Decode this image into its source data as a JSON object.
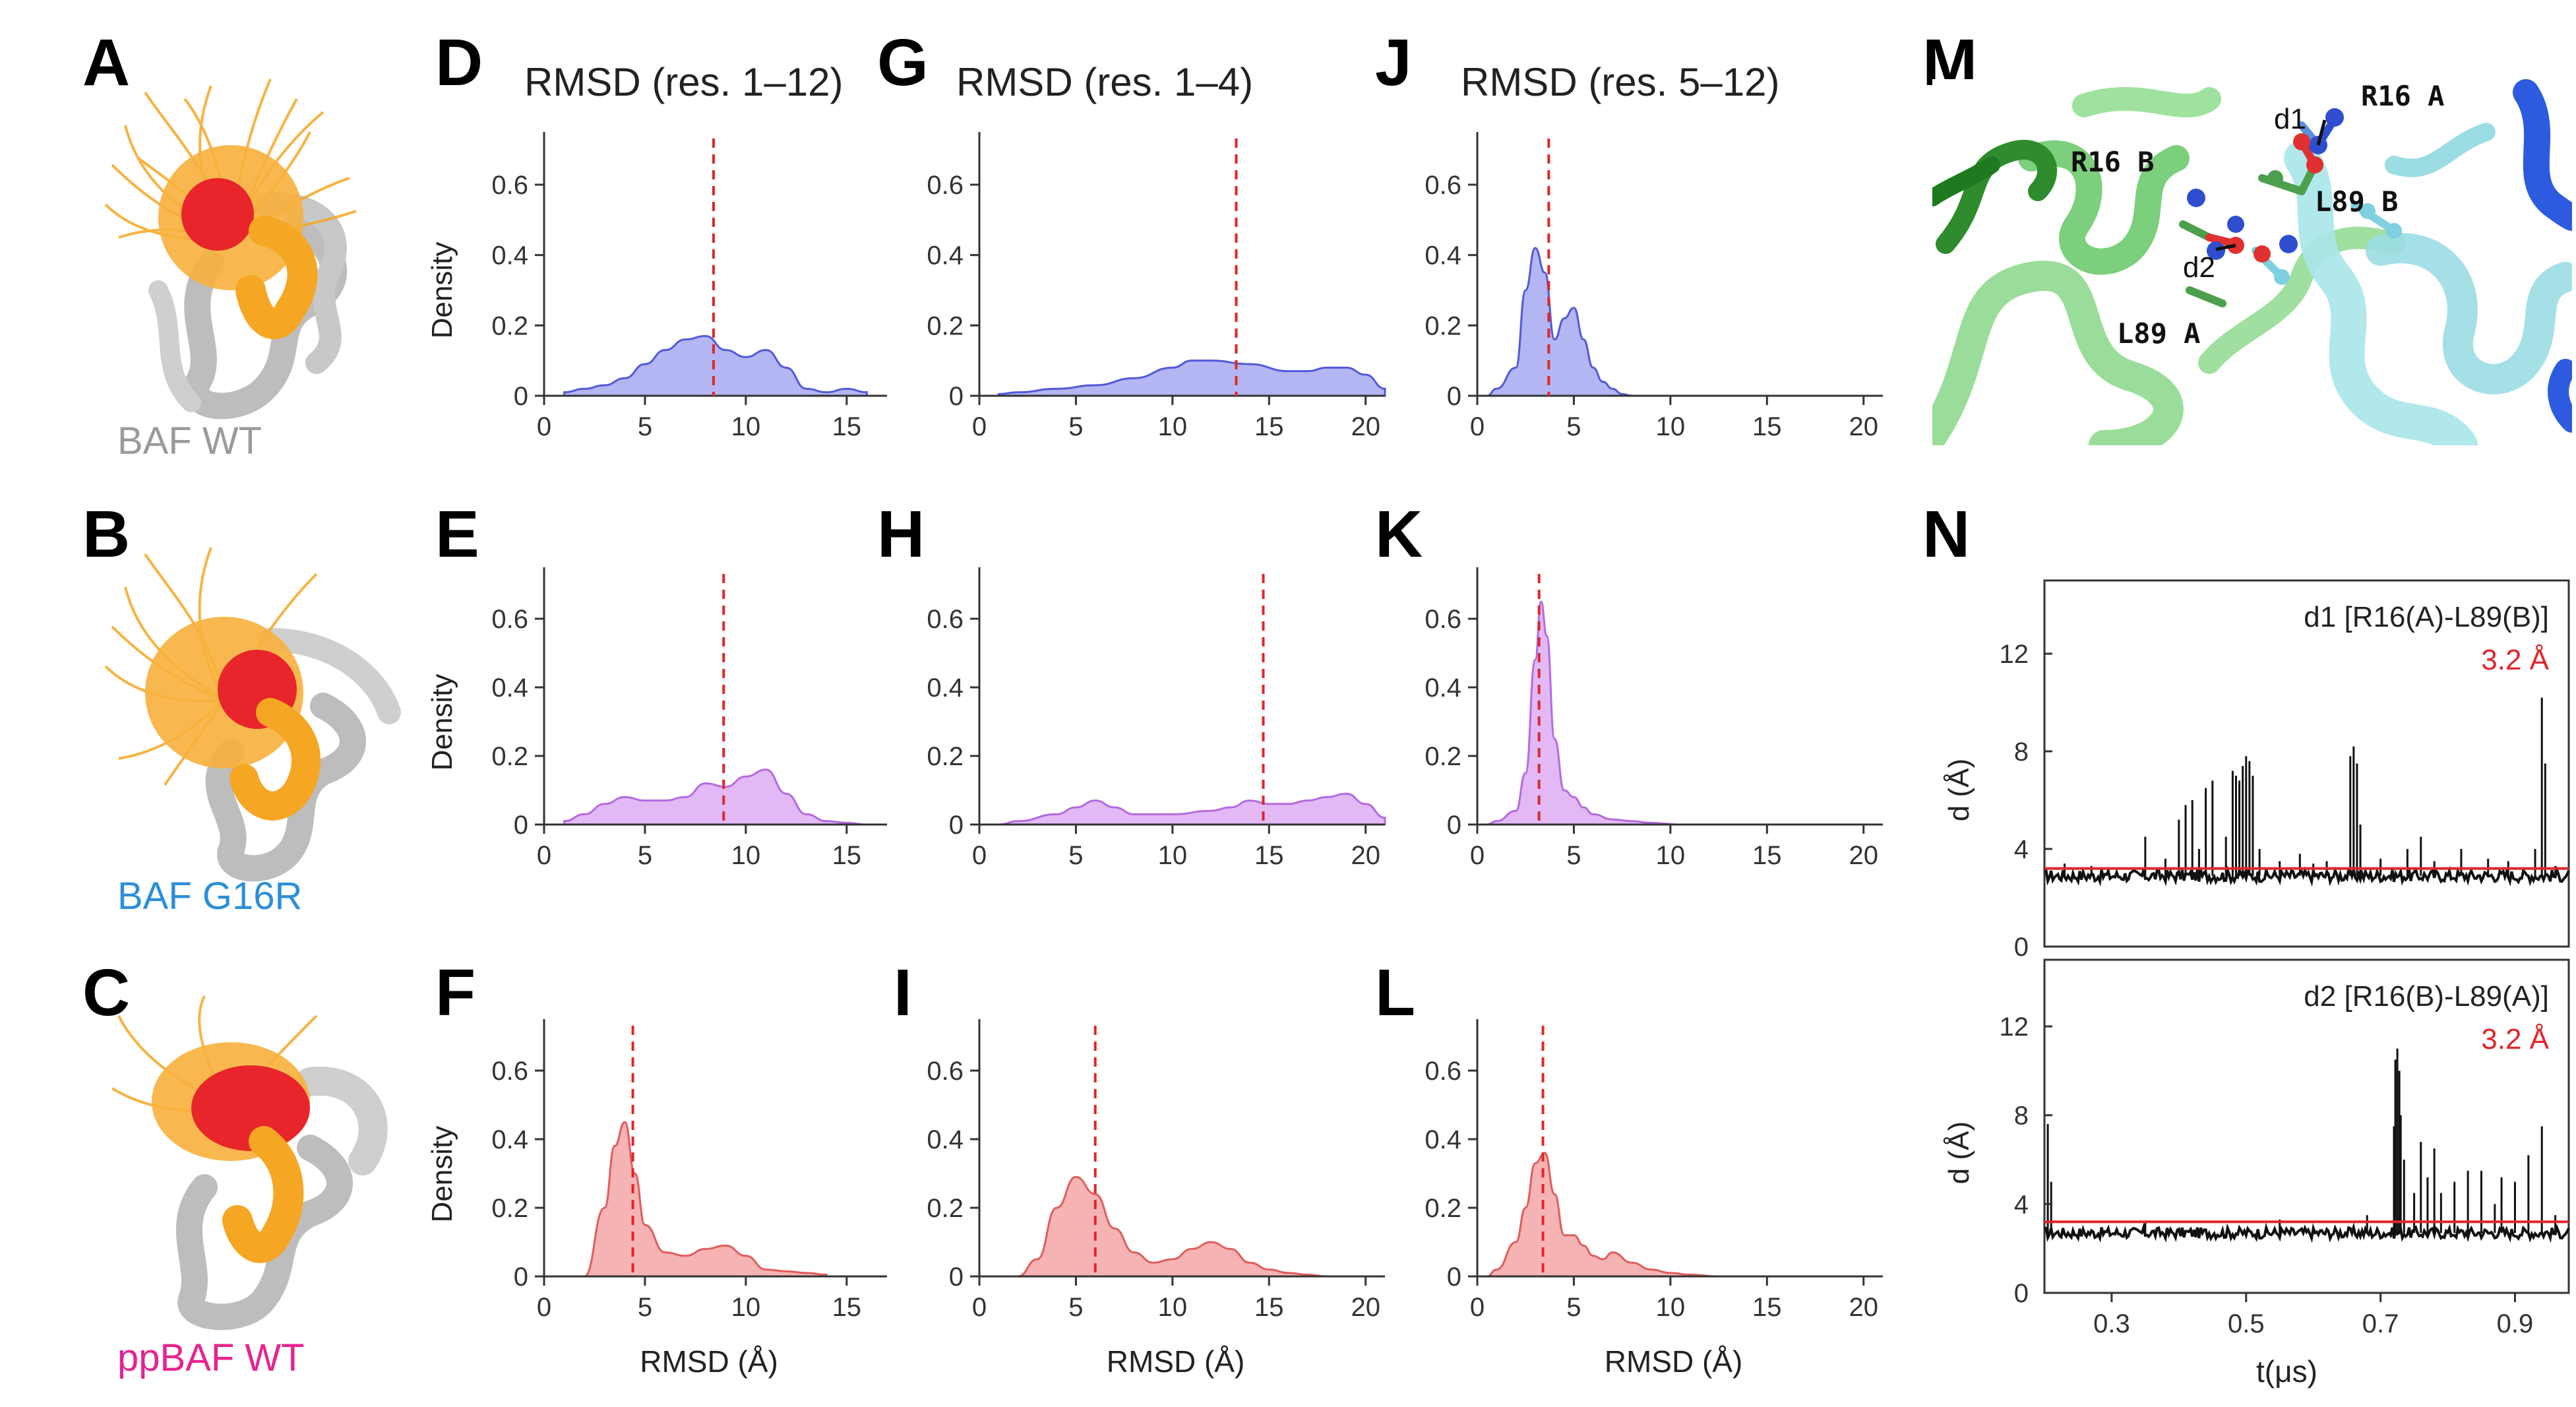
{
  "panel_letters": [
    "A",
    "B",
    "C",
    "D",
    "E",
    "F",
    "G",
    "H",
    "I",
    "J",
    "K",
    "L",
    "M",
    "N"
  ],
  "structures": [
    {
      "label": "BAF WT",
      "color": "#9a9a9a"
    },
    {
      "label": "BAF G16R",
      "color": "#2b8fd9"
    },
    {
      "label": "ppBAF WT",
      "color": "#e6238f"
    }
  ],
  "column_titles": [
    "RMSD (res. 1–12)",
    "RMSD (res. 1–4)",
    "RMSD (res. 5–12)"
  ],
  "shared": {
    "density_label": "Density",
    "rmsd_label": "RMSD (Å)"
  },
  "row_colors": [
    {
      "fill": "#b3b6f3",
      "stroke": "#5259d9"
    },
    {
      "fill": "#e2b9f5",
      "stroke": "#b46ae0"
    },
    {
      "fill": "#f6b3b3",
      "stroke": "#e05d5d"
    }
  ],
  "mean_line_color": "#e0262b",
  "chart_data": [
    {
      "panel": "D",
      "type": "area",
      "title": "RMSD (res. 1–12)",
      "xlabel": "",
      "ylabel": "Density",
      "xlim": [
        0,
        17
      ],
      "ylim": [
        0,
        0.75
      ],
      "xticks": [
        0,
        5,
        10,
        15
      ],
      "yticks": [
        0,
        0.2,
        0.4,
        0.6
      ],
      "mean": 8.4,
      "x": [
        1,
        2,
        3,
        4,
        5,
        6,
        7,
        8,
        9,
        10,
        11,
        12,
        13,
        14,
        15,
        16
      ],
      "y": [
        0.01,
        0.02,
        0.03,
        0.05,
        0.09,
        0.13,
        0.16,
        0.17,
        0.13,
        0.11,
        0.13,
        0.08,
        0.02,
        0.01,
        0.02,
        0.01
      ]
    },
    {
      "panel": "E",
      "type": "area",
      "title": "",
      "xlabel": "",
      "ylabel": "Density",
      "xlim": [
        0,
        17
      ],
      "ylim": [
        0,
        0.75
      ],
      "xticks": [
        0,
        5,
        10,
        15
      ],
      "yticks": [
        0,
        0.2,
        0.4,
        0.6
      ],
      "mean": 8.9,
      "x": [
        1,
        2,
        3,
        4,
        5,
        6,
        7,
        8,
        9,
        10,
        11,
        12,
        13,
        14,
        15,
        16
      ],
      "y": [
        0.01,
        0.03,
        0.06,
        0.08,
        0.07,
        0.07,
        0.08,
        0.12,
        0.11,
        0.14,
        0.16,
        0.09,
        0.03,
        0.01,
        0.005,
        0.0
      ]
    },
    {
      "panel": "F",
      "type": "area",
      "title": "",
      "xlabel": "RMSD (Å)",
      "ylabel": "Density",
      "xlim": [
        0,
        17
      ],
      "ylim": [
        0,
        0.75
      ],
      "xticks": [
        0,
        5,
        10,
        15
      ],
      "yticks": [
        0,
        0.2,
        0.4,
        0.6
      ],
      "mean": 4.4,
      "x": [
        2,
        3,
        3.5,
        4,
        4.5,
        5,
        6,
        7,
        8,
        9,
        10,
        11,
        12,
        13,
        14
      ],
      "y": [
        0.0,
        0.2,
        0.38,
        0.45,
        0.3,
        0.15,
        0.07,
        0.06,
        0.08,
        0.09,
        0.06,
        0.02,
        0.015,
        0.01,
        0.005
      ]
    },
    {
      "panel": "G",
      "type": "area",
      "title": "RMSD (res. 1–4)",
      "xlabel": "",
      "ylabel": "",
      "xlim": [
        0,
        21
      ],
      "ylim": [
        0,
        0.75
      ],
      "xticks": [
        0,
        5,
        10,
        15,
        20
      ],
      "yticks": [
        0,
        0.2,
        0.4,
        0.6
      ],
      "mean": 13.3,
      "x": [
        1,
        2,
        4,
        6,
        8,
        10,
        11,
        12,
        14,
        16,
        17,
        18,
        19,
        20,
        21
      ],
      "y": [
        0.005,
        0.01,
        0.02,
        0.03,
        0.05,
        0.08,
        0.1,
        0.1,
        0.09,
        0.07,
        0.07,
        0.08,
        0.08,
        0.06,
        0.02
      ]
    },
    {
      "panel": "H",
      "type": "area",
      "title": "",
      "xlabel": "",
      "ylabel": "",
      "xlim": [
        0,
        21
      ],
      "ylim": [
        0,
        0.75
      ],
      "xticks": [
        0,
        5,
        10,
        15,
        20
      ],
      "yticks": [
        0,
        0.2,
        0.4,
        0.6
      ],
      "mean": 14.7,
      "x": [
        1,
        2,
        4,
        5,
        6,
        7,
        8,
        10,
        12,
        13,
        14,
        15,
        16,
        17,
        18,
        19,
        20,
        21
      ],
      "y": [
        0.0,
        0.01,
        0.03,
        0.05,
        0.07,
        0.05,
        0.03,
        0.03,
        0.04,
        0.05,
        0.07,
        0.06,
        0.06,
        0.07,
        0.08,
        0.09,
        0.06,
        0.02
      ]
    },
    {
      "panel": "I",
      "type": "area",
      "title": "",
      "xlabel": "RMSD (Å)",
      "ylabel": "",
      "xlim": [
        0,
        21
      ],
      "ylim": [
        0,
        0.75
      ],
      "xticks": [
        0,
        5,
        10,
        15,
        20
      ],
      "yticks": [
        0,
        0.2,
        0.4,
        0.6
      ],
      "mean": 6.0,
      "x": [
        2,
        3,
        4,
        5,
        6,
        7,
        8,
        9,
        10,
        11,
        12,
        13,
        14,
        15,
        16,
        17,
        18
      ],
      "y": [
        0.0,
        0.05,
        0.2,
        0.29,
        0.24,
        0.14,
        0.07,
        0.04,
        0.05,
        0.08,
        0.1,
        0.08,
        0.04,
        0.02,
        0.01,
        0.005,
        0.0
      ]
    },
    {
      "panel": "J",
      "type": "area",
      "title": "RMSD (res. 5–12)",
      "xlabel": "",
      "ylabel": "",
      "xlim": [
        0,
        21
      ],
      "ylim": [
        0,
        0.75
      ],
      "xticks": [
        0,
        5,
        10,
        15,
        20
      ],
      "yticks": [
        0,
        0.2,
        0.4,
        0.6
      ],
      "mean": 3.7,
      "x": [
        0.5,
        1,
        2,
        2.5,
        3,
        3.5,
        4,
        4.5,
        5,
        5.5,
        6,
        6.5,
        7,
        7.5,
        8
      ],
      "y": [
        0.0,
        0.02,
        0.08,
        0.3,
        0.42,
        0.35,
        0.16,
        0.22,
        0.25,
        0.16,
        0.08,
        0.04,
        0.02,
        0.005,
        0.0
      ]
    },
    {
      "panel": "K",
      "type": "area",
      "title": "",
      "xlabel": "",
      "ylabel": "",
      "xlim": [
        0,
        21
      ],
      "ylim": [
        0,
        0.75
      ],
      "xticks": [
        0,
        5,
        10,
        15,
        20
      ],
      "yticks": [
        0,
        0.2,
        0.4,
        0.6
      ],
      "mean": 3.2,
      "x": [
        0.5,
        1,
        2,
        2.5,
        3,
        3.3,
        3.6,
        4,
        4.5,
        5,
        5.5,
        6,
        7,
        8,
        9,
        10.5
      ],
      "y": [
        0.0,
        0.01,
        0.04,
        0.15,
        0.48,
        0.65,
        0.55,
        0.25,
        0.1,
        0.08,
        0.05,
        0.03,
        0.015,
        0.01,
        0.005,
        0.0
      ]
    },
    {
      "panel": "L",
      "type": "area",
      "title": "",
      "xlabel": "RMSD (Å)",
      "ylabel": "",
      "xlim": [
        0,
        21
      ],
      "ylim": [
        0,
        0.75
      ],
      "xticks": [
        0,
        5,
        10,
        15,
        20
      ],
      "yticks": [
        0,
        0.2,
        0.4,
        0.6
      ],
      "mean": 3.4,
      "x": [
        0.5,
        1,
        2,
        2.5,
        3,
        3.5,
        4,
        4.5,
        5,
        5.5,
        6,
        6.5,
        7,
        8,
        9,
        10,
        11,
        12.5
      ],
      "y": [
        0.0,
        0.02,
        0.1,
        0.2,
        0.33,
        0.36,
        0.24,
        0.12,
        0.12,
        0.09,
        0.06,
        0.05,
        0.07,
        0.04,
        0.02,
        0.01,
        0.005,
        0.0
      ]
    },
    {
      "panel": "N-d1",
      "type": "line",
      "title": "d1 [R16(A)-L89(B)]",
      "threshold": 3.2,
      "threshold_label": "3.2 Å",
      "xlabel": "",
      "ylabel": "d (Å)",
      "xlim": [
        0.2,
        0.98
      ],
      "ylim": [
        0,
        15
      ],
      "xticks": [],
      "yticks": [
        0,
        4,
        8,
        12
      ],
      "baseline": 2.9,
      "spikes": [
        [
          0.23,
          3.4
        ],
        [
          0.27,
          3.3
        ],
        [
          0.35,
          4.5
        ],
        [
          0.38,
          3.6
        ],
        [
          0.4,
          5.2
        ],
        [
          0.41,
          5.8
        ],
        [
          0.42,
          6.0
        ],
        [
          0.43,
          4.0
        ],
        [
          0.44,
          6.5
        ],
        [
          0.45,
          6.8
        ],
        [
          0.47,
          4.5
        ],
        [
          0.48,
          7.2
        ],
        [
          0.485,
          7.0
        ],
        [
          0.49,
          6.8
        ],
        [
          0.495,
          7.4
        ],
        [
          0.5,
          7.8
        ],
        [
          0.505,
          7.6
        ],
        [
          0.51,
          7.0
        ],
        [
          0.52,
          4.0
        ],
        [
          0.55,
          3.5
        ],
        [
          0.58,
          3.8
        ],
        [
          0.6,
          3.4
        ],
        [
          0.62,
          3.5
        ],
        [
          0.655,
          7.8
        ],
        [
          0.66,
          8.2
        ],
        [
          0.665,
          7.5
        ],
        [
          0.67,
          5.0
        ],
        [
          0.7,
          3.6
        ],
        [
          0.74,
          4.0
        ],
        [
          0.76,
          4.5
        ],
        [
          0.78,
          3.5
        ],
        [
          0.82,
          4.0
        ],
        [
          0.86,
          3.6
        ],
        [
          0.89,
          3.5
        ],
        [
          0.93,
          4.0
        ],
        [
          0.94,
          10.2
        ],
        [
          0.945,
          7.5
        ],
        [
          0.96,
          3.3
        ]
      ]
    },
    {
      "panel": "N-d2",
      "type": "line",
      "title": "d2 [R16(B)-L89(A)]",
      "threshold": 3.2,
      "threshold_label": "3.2 Å",
      "xlabel": "t(μs)",
      "ylabel": "d (Å)",
      "xlim": [
        0.2,
        0.98
      ],
      "ylim": [
        0,
        15
      ],
      "xticks": [
        0.3,
        0.5,
        0.7,
        0.9
      ],
      "xticklabels": [
        "0.3",
        "0.5",
        "0.7",
        "0.9"
      ],
      "yticks": [
        0,
        4,
        8,
        12
      ],
      "baseline": 2.7,
      "spikes": [
        [
          0.205,
          7.6
        ],
        [
          0.21,
          5.0
        ],
        [
          0.35,
          3.2
        ],
        [
          0.55,
          3.3
        ],
        [
          0.68,
          3.5
        ],
        [
          0.72,
          7.5
        ],
        [
          0.722,
          10.5
        ],
        [
          0.725,
          11.0
        ],
        [
          0.728,
          10.0
        ],
        [
          0.73,
          8.0
        ],
        [
          0.735,
          6.0
        ],
        [
          0.75,
          4.5
        ],
        [
          0.76,
          6.8
        ],
        [
          0.77,
          5.2
        ],
        [
          0.78,
          6.5
        ],
        [
          0.79,
          4.5
        ],
        [
          0.81,
          5.0
        ],
        [
          0.83,
          5.5
        ],
        [
          0.85,
          5.5
        ],
        [
          0.87,
          4.0
        ],
        [
          0.88,
          5.2
        ],
        [
          0.9,
          5.0
        ],
        [
          0.92,
          6.2
        ],
        [
          0.94,
          7.5
        ],
        [
          0.96,
          3.5
        ]
      ]
    }
  ],
  "molecule_labels": {
    "r16a": "R16 A",
    "r16b": "R16 B",
    "l89b": "L89 B",
    "l89a": "L89 A",
    "d1": "d1",
    "d2": "d2"
  }
}
